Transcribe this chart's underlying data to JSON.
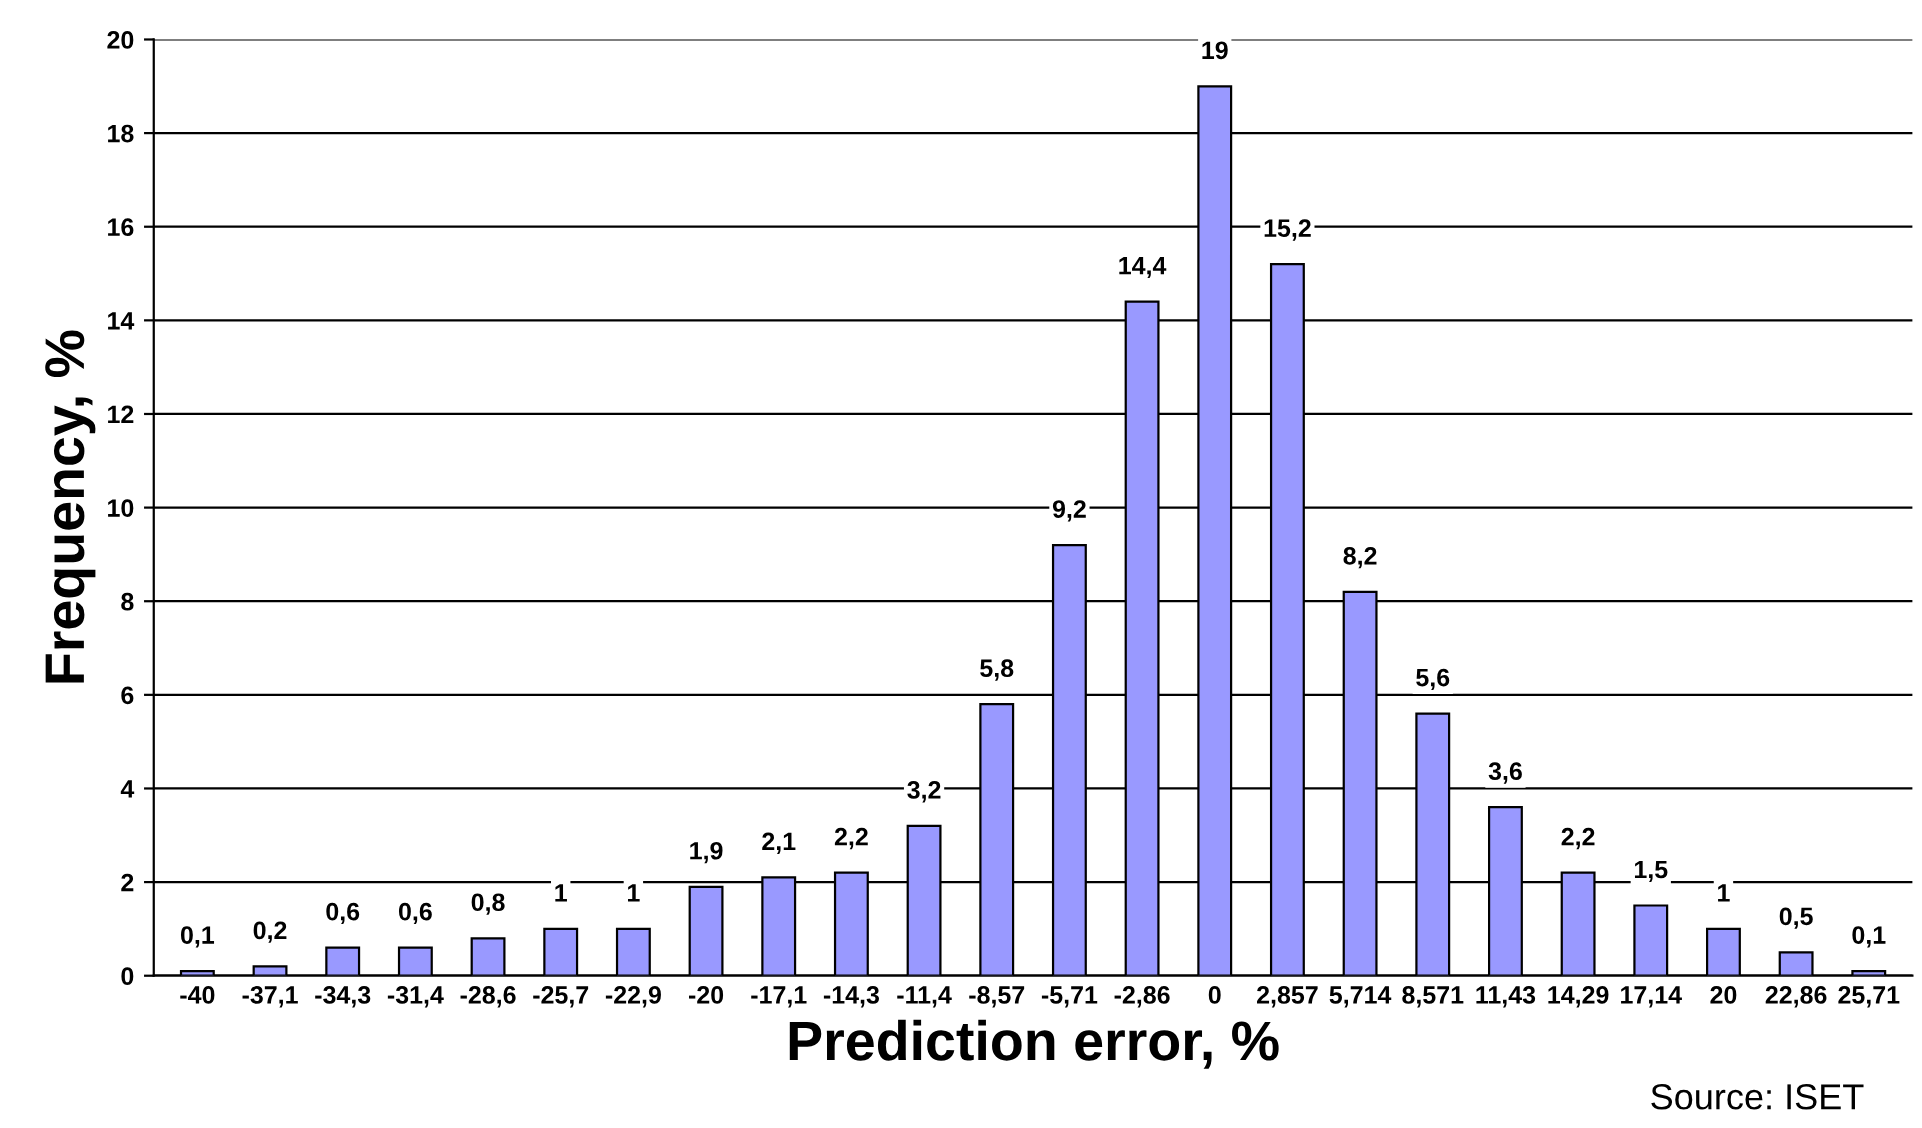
{
  "chart_data": {
    "type": "bar",
    "xlabel": "Prediction error, %",
    "ylabel": "Frequency, %",
    "categories": [
      "-40",
      "-37,1",
      "-34,3",
      "-31,4",
      "-28,6",
      "-25,7",
      "-22,9",
      "-20",
      "-17,1",
      "-14,3",
      "-11,4",
      "-8,57",
      "-5,71",
      "-2,86",
      "0",
      "2,857",
      "5,714",
      "8,571",
      "11,43",
      "14,29",
      "17,14",
      "20",
      "22,86",
      "25,71"
    ],
    "values": [
      0.1,
      0.2,
      0.6,
      0.6,
      0.8,
      1,
      1,
      1.9,
      2.1,
      2.2,
      3.2,
      5.8,
      9.2,
      14.4,
      19,
      15.2,
      8.2,
      5.6,
      3.6,
      2.2,
      1.5,
      1,
      0.5,
      0.1
    ],
    "value_labels": [
      "0,1",
      "0,2",
      "0,6",
      "0,6",
      "0,8",
      "1",
      "1",
      "1,9",
      "2,1",
      "2,2",
      "3,2",
      "5,8",
      "9,2",
      "14,4",
      "19",
      "15,2",
      "8,2",
      "5,6",
      "3,6",
      "2,2",
      "1,5",
      "1",
      "0,5",
      "0,1"
    ],
    "color": "#9999ff",
    "ylim": [
      0,
      20
    ],
    "yticks": [
      0,
      2,
      4,
      6,
      8,
      10,
      12,
      14,
      16,
      18,
      20
    ],
    "grid": "y",
    "annotations": [
      "Source: ISET"
    ]
  }
}
